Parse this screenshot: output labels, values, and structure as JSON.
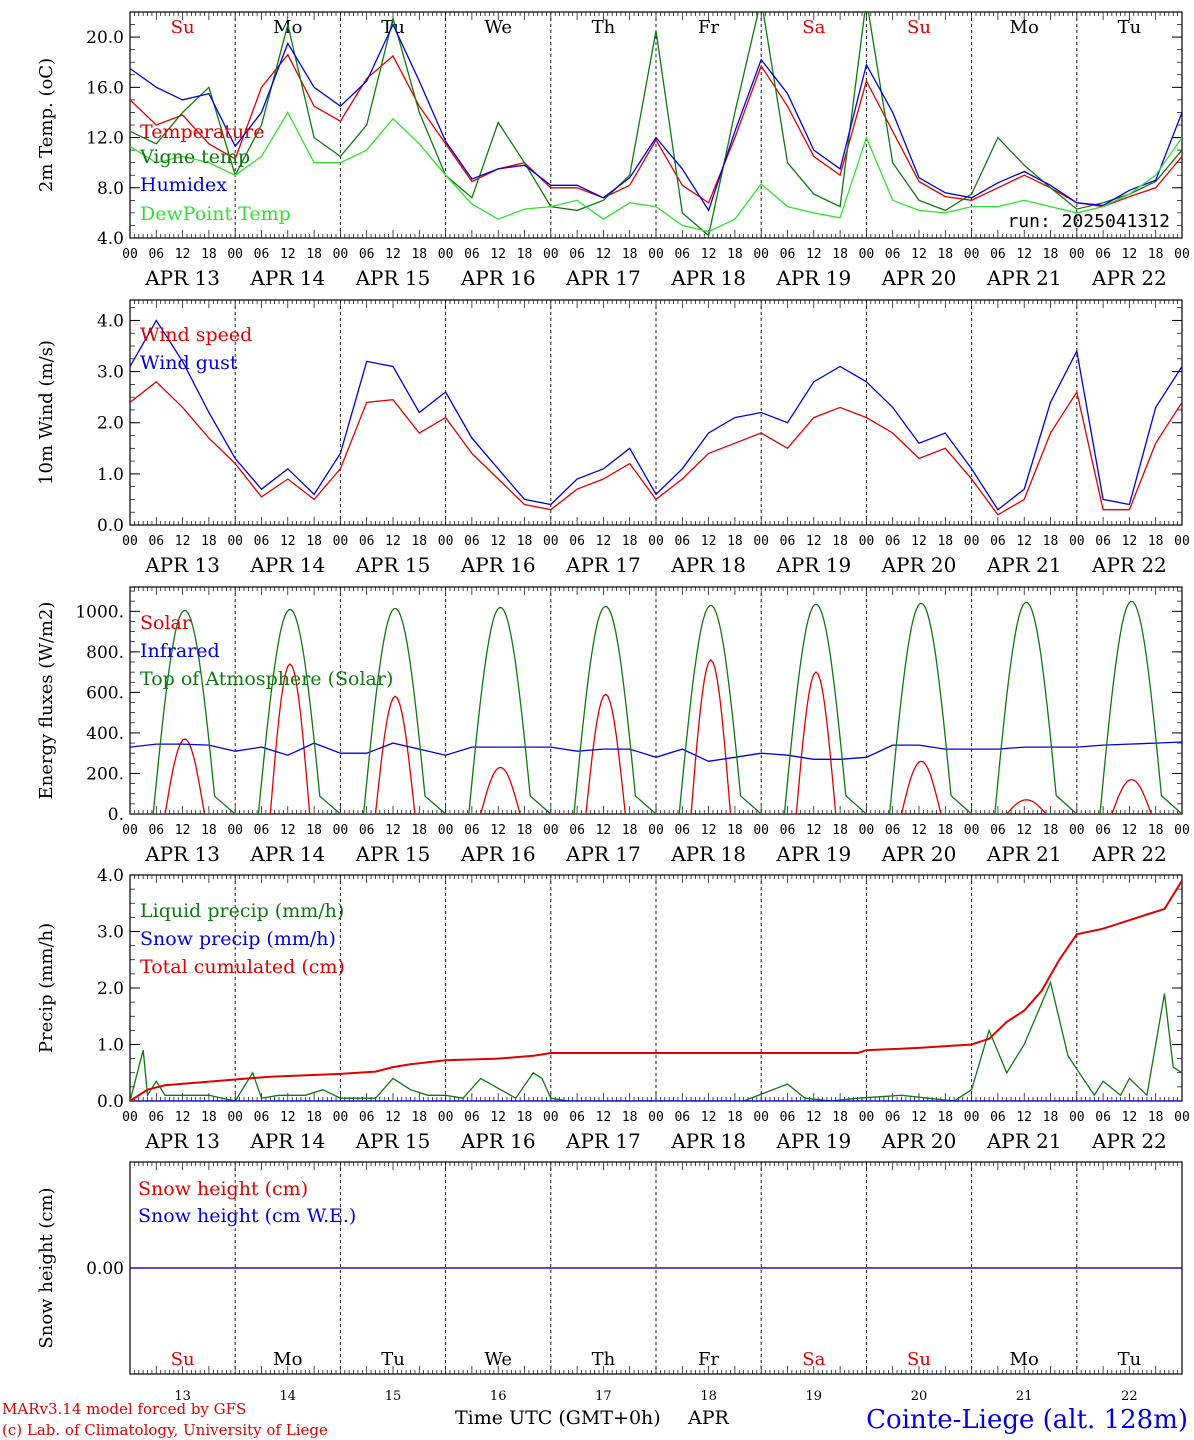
{
  "days": [
    "Su",
    "Mo",
    "Tu",
    "We",
    "Th",
    "Fr",
    "Sa",
    "Su",
    "Mo",
    "Tu"
  ],
  "day_colors": [
    "#e00000",
    "#000000",
    "#000000",
    "#000000",
    "#000000",
    "#000000",
    "#e00000",
    "#e00000",
    "#000000",
    "#000000"
  ],
  "date_labels": [
    "APR 13",
    "APR 14",
    "APR 15",
    "APR 16",
    "APR 17",
    "APR 18",
    "APR 19",
    "APR 20",
    "APR 21",
    "APR 22"
  ],
  "hour_labels": [
    "00",
    "06",
    "12",
    "18"
  ],
  "bottom_day_numbers": [
    "13",
    "14",
    "15",
    "16",
    "17",
    "18",
    "19",
    "20",
    "21",
    "22"
  ],
  "x_title": "Time UTC (GMT+0h)",
  "x_month": "APR",
  "run": "run: 2025041312",
  "credit_line1": "MARv3.14 model forced by GFS",
  "credit_line2": "(c) Lab. of Climatology, University of Liege",
  "station": "Cointe-Liege (alt. 128m)",
  "colors": {
    "red": "#e00000",
    "green": "#107810",
    "blue": "#0000e0",
    "light_green": "#30e030"
  },
  "chart_data": [
    {
      "type": "line",
      "id": "temp",
      "ylabel": "2m Temp. (oC)",
      "ylim": [
        4,
        22
      ],
      "ticks": [
        4,
        8,
        12,
        16,
        20
      ],
      "tick_labels": [
        "4.0",
        "8.0",
        "12.0",
        "16.0",
        "20.0"
      ],
      "x_hours": [
        0,
        6,
        12,
        18,
        24,
        30,
        36,
        42,
        48,
        54,
        60,
        66,
        72,
        78,
        84,
        90,
        96,
        102,
        108,
        114,
        120,
        126,
        132,
        138,
        144,
        150,
        156,
        162,
        168,
        174,
        180,
        186,
        192,
        198,
        204,
        210,
        216,
        222,
        228,
        234,
        240
      ],
      "series": [
        {
          "name": "Temperature",
          "color": "#e00000",
          "values": [
            15,
            13,
            13.8,
            11.5,
            10.3,
            16,
            18.6,
            14.5,
            13.3,
            16.7,
            18.5,
            14.5,
            11.5,
            8.5,
            9.5,
            10,
            8,
            8,
            7.2,
            8.2,
            11.8,
            8.2,
            6.8,
            12,
            17.7,
            14.5,
            10.5,
            9,
            16.5,
            12.5,
            8.5,
            7.3,
            7,
            8,
            9,
            8,
            6.8,
            6.5,
            7.3,
            8,
            10.5
          ]
        },
        {
          "name": "Vigne temp",
          "color": "#107810",
          "values": [
            12.5,
            11.5,
            14,
            16,
            9,
            13,
            21,
            12,
            10.5,
            13,
            21.5,
            14,
            9,
            7.2,
            13.2,
            10,
            6.5,
            6.2,
            7,
            9,
            20.5,
            6,
            4.2,
            14,
            23,
            10,
            7.5,
            6.5,
            23,
            10,
            7,
            6.2,
            7.5,
            12,
            9.8,
            8,
            6.3,
            6.8,
            7.5,
            8.5,
            11
          ]
        },
        {
          "name": "Humidex",
          "color": "#0000e0",
          "values": [
            17.5,
            16,
            15,
            15.5,
            11.3,
            14,
            19.5,
            16,
            14.5,
            16.5,
            21,
            16.5,
            11.7,
            8.7,
            9.5,
            9.8,
            8.2,
            8.2,
            7.2,
            8.8,
            12,
            9.5,
            6.2,
            12.5,
            18.2,
            15.5,
            11,
            9.5,
            17.8,
            14,
            8.8,
            7.6,
            7.2,
            8.4,
            9.3,
            8.2,
            6.8,
            6.6,
            7.8,
            8.6,
            14
          ]
        },
        {
          "name": "DewPoint Temp",
          "color": "#30e030",
          "values": [
            11.3,
            10,
            10.5,
            10,
            9,
            10.5,
            14,
            10,
            10,
            11,
            13.5,
            11.5,
            9,
            6.7,
            5.5,
            6.3,
            6.5,
            7,
            5.5,
            6.8,
            6.5,
            5,
            4.5,
            5.5,
            8.3,
            6.5,
            6,
            5.6,
            12,
            7,
            6.2,
            6,
            6.5,
            6.5,
            7,
            6.5,
            6,
            6.5,
            7.5,
            9,
            12
          ]
        }
      ]
    },
    {
      "type": "line",
      "id": "wind",
      "ylabel": "10m Wind (m/s)",
      "ylim": [
        0,
        4.4
      ],
      "ticks": [
        0,
        1,
        2,
        3,
        4
      ],
      "tick_labels": [
        "0.0",
        "1.0",
        "2.0",
        "3.0",
        "4.0"
      ],
      "x_hours": [
        0,
        6,
        12,
        18,
        24,
        30,
        36,
        42,
        48,
        54,
        60,
        66,
        72,
        78,
        84,
        90,
        96,
        102,
        108,
        114,
        120,
        126,
        132,
        138,
        144,
        150,
        156,
        162,
        168,
        174,
        180,
        186,
        192,
        198,
        204,
        210,
        216,
        222,
        228,
        234,
        240
      ],
      "series": [
        {
          "name": "Wind speed",
          "color": "#e00000",
          "values": [
            2.4,
            2.8,
            2.3,
            1.7,
            1.2,
            0.55,
            0.9,
            0.5,
            1.1,
            2.4,
            2.45,
            1.8,
            2.1,
            1.4,
            0.9,
            0.4,
            0.3,
            0.7,
            0.9,
            1.2,
            0.5,
            0.9,
            1.4,
            1.6,
            1.8,
            1.5,
            2.1,
            2.3,
            2.1,
            1.8,
            1.3,
            1.5,
            0.9,
            0.2,
            0.5,
            1.8,
            2.6,
            0.3,
            0.3,
            1.6,
            2.4
          ]
        },
        {
          "name": "Wind gust",
          "color": "#0000e0",
          "values": [
            3.1,
            4,
            3.2,
            2.2,
            1.3,
            0.7,
            1.1,
            0.6,
            1.4,
            3.2,
            3.1,
            2.2,
            2.6,
            1.7,
            1.1,
            0.5,
            0.4,
            0.9,
            1.1,
            1.5,
            0.6,
            1.1,
            1.8,
            2.1,
            2.2,
            2.0,
            2.8,
            3.1,
            2.8,
            2.3,
            1.6,
            1.8,
            1.1,
            0.3,
            0.7,
            2.4,
            3.4,
            0.5,
            0.4,
            2.3,
            3.1
          ]
        }
      ]
    },
    {
      "type": "line",
      "id": "energy",
      "ylabel": "Energy fluxes (W/m2)",
      "ylim": [
        0,
        1120
      ],
      "ticks": [
        0,
        200,
        400,
        600,
        800,
        1000
      ],
      "tick_labels": [
        "0.",
        "200.",
        "400.",
        "600.",
        "800.",
        "1000."
      ],
      "series": [
        {
          "name": "Solar",
          "color": "#e00000",
          "peaks": [
            370,
            740,
            580,
            230,
            590,
            760,
            700,
            260,
            70,
            170
          ]
        },
        {
          "name": "Infrared",
          "color": "#0000e0",
          "x_hours": [
            0,
            6,
            12,
            18,
            24,
            30,
            36,
            42,
            48,
            54,
            60,
            66,
            72,
            78,
            84,
            90,
            96,
            102,
            108,
            114,
            120,
            126,
            132,
            138,
            144,
            150,
            156,
            162,
            168,
            174,
            180,
            186,
            192,
            198,
            204,
            210,
            216,
            222,
            228,
            234,
            240
          ],
          "values": [
            330,
            345,
            345,
            340,
            310,
            330,
            290,
            350,
            300,
            300,
            350,
            320,
            290,
            330,
            330,
            330,
            330,
            310,
            320,
            320,
            280,
            320,
            260,
            280,
            300,
            290,
            270,
            270,
            280,
            340,
            340,
            320,
            320,
            320,
            330,
            330,
            330,
            340,
            345,
            350,
            355
          ]
        },
        {
          "name": "Top of Atmosphere (Solar)",
          "color": "#107810",
          "peaks": [
            1005,
            1010,
            1015,
            1020,
            1025,
            1030,
            1035,
            1040,
            1045,
            1050
          ]
        }
      ]
    },
    {
      "type": "line",
      "id": "precip",
      "ylabel": "Precip (mm/h)",
      "ylim": [
        0,
        4.0
      ],
      "ticks": [
        0,
        1,
        2,
        3,
        4
      ],
      "tick_labels": [
        "0.0",
        "1.0",
        "2.0",
        "3.0",
        "4.0"
      ],
      "series": [
        {
          "name": "Liquid precip (mm/h)",
          "color": "#107810",
          "x_hours": [
            0,
            3,
            4,
            6,
            8,
            12,
            18,
            24,
            28,
            30,
            34,
            40,
            44,
            48,
            56,
            60,
            64,
            68,
            72,
            76,
            80,
            88,
            92,
            94,
            96,
            100,
            104,
            108,
            140,
            150,
            154,
            160,
            166,
            176,
            188,
            192,
            196,
            200,
            204,
            210,
            214,
            220,
            222,
            226,
            228,
            232,
            236,
            238,
            240
          ],
          "values": [
            0,
            0.9,
            0.1,
            0.35,
            0.1,
            0.1,
            0.1,
            0,
            0.5,
            0.05,
            0.1,
            0.1,
            0.2,
            0.05,
            0.05,
            0.4,
            0.2,
            0.1,
            0.1,
            0.05,
            0.4,
            0.05,
            0.5,
            0.4,
            0.05,
            0,
            0,
            0,
            0,
            0.3,
            0.05,
            0,
            0.05,
            0.1,
            0,
            0.2,
            1.25,
            0.5,
            1.0,
            2.1,
            0.8,
            0.1,
            0.35,
            0.1,
            0.4,
            0.1,
            1.9,
            0.6,
            0.5
          ]
        },
        {
          "name": "Snow precip (mm/h)",
          "color": "#0000e0",
          "x_hours": [
            0,
            240
          ],
          "values": [
            0,
            0
          ]
        },
        {
          "name": "Total cumulated (cm)",
          "color": "#e00000",
          "x_hours": [
            0,
            4,
            8,
            16,
            24,
            32,
            48,
            56,
            60,
            64,
            72,
            84,
            92,
            96,
            120,
            144,
            166,
            168,
            180,
            192,
            196,
            200,
            204,
            208,
            212,
            216,
            222,
            228,
            232,
            236,
            240
          ],
          "values": [
            0,
            0.2,
            0.28,
            0.33,
            0.38,
            0.43,
            0.48,
            0.52,
            0.6,
            0.65,
            0.72,
            0.75,
            0.8,
            0.85,
            0.85,
            0.85,
            0.85,
            0.9,
            0.94,
            1.0,
            1.1,
            1.4,
            1.6,
            1.95,
            2.5,
            2.95,
            3.05,
            3.2,
            3.3,
            3.4,
            3.9
          ]
        }
      ]
    },
    {
      "type": "line",
      "id": "snow",
      "ylabel": "Snow height (cm)",
      "ylim": [
        -1,
        1
      ],
      "ticks": [
        0
      ],
      "tick_labels": [
        "0.00"
      ],
      "series": [
        {
          "name": "Snow height (cm)",
          "color": "#e00000",
          "x_hours": [
            0,
            240
          ],
          "values": [
            0,
            0
          ]
        },
        {
          "name": "Snow height (cm W.E.)",
          "color": "#0000e0",
          "x_hours": [
            0,
            240
          ],
          "values": [
            0,
            0
          ]
        }
      ]
    }
  ]
}
